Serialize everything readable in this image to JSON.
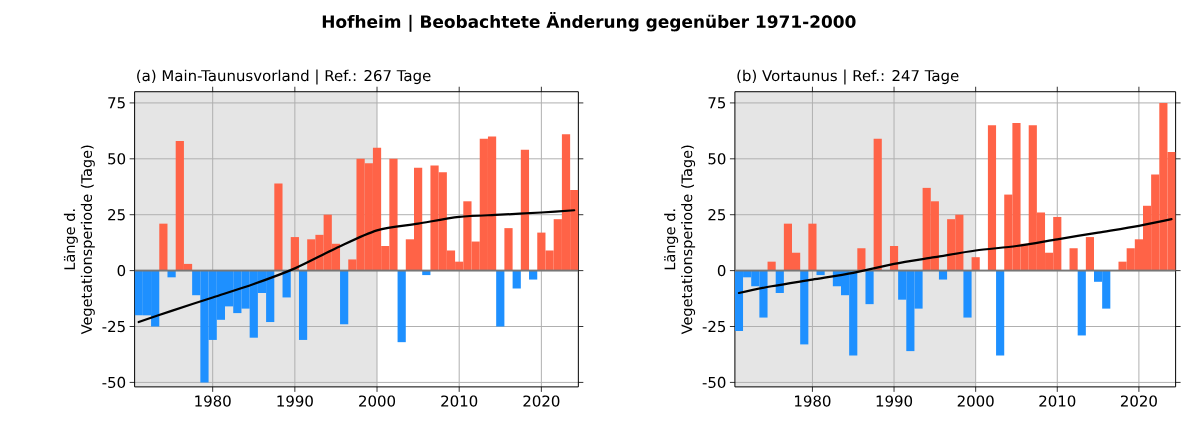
{
  "chart_data": [
    {
      "type": "bar",
      "title": "Hofheim | Beobachtete Änderung gegenüber 1971-2000",
      "subtitle": "(a) Main-Taunusvorland | Ref.: 267 Tage",
      "ylabel": "Länge d. Vegetationsperiode (Tage)",
      "x": [
        1971,
        1972,
        1973,
        1974,
        1975,
        1976,
        1977,
        1978,
        1979,
        1980,
        1981,
        1982,
        1983,
        1984,
        1985,
        1986,
        1987,
        1988,
        1989,
        1990,
        1991,
        1992,
        1993,
        1994,
        1995,
        1996,
        1997,
        1998,
        1999,
        2000,
        2001,
        2002,
        2003,
        2004,
        2005,
        2006,
        2007,
        2008,
        2009,
        2010,
        2011,
        2012,
        2013,
        2014,
        2015,
        2016,
        2017,
        2018,
        2019,
        2020,
        2021,
        2022,
        2023,
        2024
      ],
      "series": [
        {
          "values": [
            -20,
            -20,
            -25,
            21,
            -3,
            58,
            3,
            -11,
            -50,
            -31,
            -22,
            -16,
            -19,
            -17,
            -30,
            -10,
            -23,
            39,
            -12,
            15,
            -31,
            14,
            16,
            25,
            12,
            -24,
            5,
            50,
            48,
            55,
            11,
            50,
            -32,
            14,
            46,
            -2,
            47,
            44,
            9,
            4,
            31,
            13,
            59,
            60,
            -25,
            19,
            -8,
            54,
            -4,
            17,
            9,
            23,
            61,
            36
          ],
          "colors": [
            "#1e90ff",
            "#1e90ff",
            "#1e90ff",
            "#ff6347",
            "#1e90ff",
            "#ff6347",
            "#ff6347",
            "#1e90ff",
            "#1e90ff",
            "#1e90ff",
            "#1e90ff",
            "#1e90ff",
            "#1e90ff",
            "#1e90ff",
            "#1e90ff",
            "#1e90ff",
            "#1e90ff",
            "#ff6347",
            "#1e90ff",
            "#ff6347",
            "#1e90ff",
            "#ff6347",
            "#ff6347",
            "#ff6347",
            "#ff6347",
            "#1e90ff",
            "#ff6347",
            "#ff6347",
            "#ff6347",
            "#ff6347",
            "#ff6347",
            "#ff6347",
            "#1e90ff",
            "#ff6347",
            "#ff6347",
            "#1e90ff",
            "#ff6347",
            "#ff6347",
            "#ff6347",
            "#ff6347",
            "#ff6347",
            "#ff6347",
            "#ff6347",
            "#ff6347",
            "#1e90ff",
            "#ff6347",
            "#1e90ff",
            "#ff6347",
            "#1e90ff",
            "#ff6347",
            "#ff6347",
            "#ff6347",
            "#ff6347",
            "#ff6347"
          ]
        },
        {
          "type": "line",
          "color": "#000000",
          "x": [
            1971,
            1975,
            1980,
            1985,
            1990,
            1995,
            2000,
            2005,
            2010,
            2015,
            2020,
            2024
          ],
          "values": [
            -23,
            -18,
            -12,
            -6,
            1,
            10,
            18,
            21,
            24,
            25,
            26,
            27
          ]
        }
      ],
      "xlim": [
        1970.5,
        2024.5
      ],
      "ylim": [
        -52,
        80
      ],
      "xticks": [
        1980,
        1990,
        2000,
        2010,
        2020
      ],
      "yticks": [
        -50,
        -25,
        0,
        25,
        50,
        75
      ],
      "grid": true,
      "bands": [
        {
          "axis": "x",
          "from": 1970.5,
          "to": 2000,
          "color": "#e5e5e5"
        }
      ],
      "ref_lines": [
        {
          "axis": "y",
          "value": 0,
          "color": "#777777"
        }
      ]
    },
    {
      "type": "bar",
      "subtitle": "(b) Vortaunus | Ref.: 247 Tage",
      "ylabel": "Länge d. Vegetationsperiode (Tage)",
      "x": [
        1971,
        1972,
        1973,
        1974,
        1975,
        1976,
        1977,
        1978,
        1979,
        1980,
        1981,
        1982,
        1983,
        1984,
        1985,
        1986,
        1987,
        1988,
        1989,
        1990,
        1991,
        1992,
        1993,
        1994,
        1995,
        1996,
        1997,
        1998,
        1999,
        2000,
        2001,
        2002,
        2003,
        2004,
        2005,
        2006,
        2007,
        2008,
        2009,
        2010,
        2011,
        2012,
        2013,
        2014,
        2015,
        2016,
        2017,
        2018,
        2019,
        2020,
        2021,
        2022,
        2023,
        2024
      ],
      "series": [
        {
          "values": [
            -27,
            -3,
            -7,
            -21,
            4,
            -10,
            21,
            8,
            -33,
            21,
            -2,
            null,
            -7,
            -11,
            -38,
            10,
            -15,
            59,
            null,
            11,
            -13,
            -36,
            -17,
            37,
            31,
            -4,
            23,
            25,
            -21,
            6,
            null,
            65,
            -38,
            34,
            66,
            12,
            65,
            26,
            8,
            24,
            null,
            10,
            -29,
            15,
            -5,
            -17,
            null,
            4,
            10,
            14,
            29,
            43,
            75,
            53
          ],
          "colors": [
            "#1e90ff",
            "#1e90ff",
            "#1e90ff",
            "#1e90ff",
            "#ff6347",
            "#1e90ff",
            "#ff6347",
            "#ff6347",
            "#1e90ff",
            "#ff6347",
            "#1e90ff",
            "#1e90ff",
            "#1e90ff",
            "#1e90ff",
            "#1e90ff",
            "#ff6347",
            "#1e90ff",
            "#ff6347",
            "#ff6347",
            "#ff6347",
            "#1e90ff",
            "#1e90ff",
            "#1e90ff",
            "#ff6347",
            "#ff6347",
            "#1e90ff",
            "#ff6347",
            "#ff6347",
            "#1e90ff",
            "#ff6347",
            "#1e90ff",
            "#ff6347",
            "#1e90ff",
            "#ff6347",
            "#ff6347",
            "#ff6347",
            "#ff6347",
            "#ff6347",
            "#ff6347",
            "#ff6347",
            "#ff6347",
            "#ff6347",
            "#1e90ff",
            "#ff6347",
            "#1e90ff",
            "#1e90ff",
            "#ff6347",
            "#ff6347",
            "#ff6347",
            "#ff6347",
            "#ff6347",
            "#ff6347",
            "#ff6347",
            "#ff6347"
          ]
        },
        {
          "type": "line",
          "color": "#000000",
          "x": [
            1971,
            1975,
            1980,
            1985,
            1990,
            1995,
            2000,
            2005,
            2010,
            2015,
            2020,
            2024
          ],
          "values": [
            -10,
            -7,
            -4,
            -1,
            3,
            6,
            9,
            11,
            14,
            17,
            20,
            23
          ]
        }
      ],
      "xlim": [
        1970.5,
        2024.5
      ],
      "ylim": [
        -52,
        80
      ],
      "xticks": [
        1980,
        1990,
        2000,
        2010,
        2020
      ],
      "yticks": [
        -50,
        -25,
        0,
        25,
        50,
        75
      ],
      "grid": true,
      "bands": [
        {
          "axis": "x",
          "from": 1970.5,
          "to": 2000,
          "color": "#e5e5e5"
        }
      ],
      "ref_lines": [
        {
          "axis": "y",
          "value": 0,
          "color": "#777777"
        }
      ]
    }
  ]
}
